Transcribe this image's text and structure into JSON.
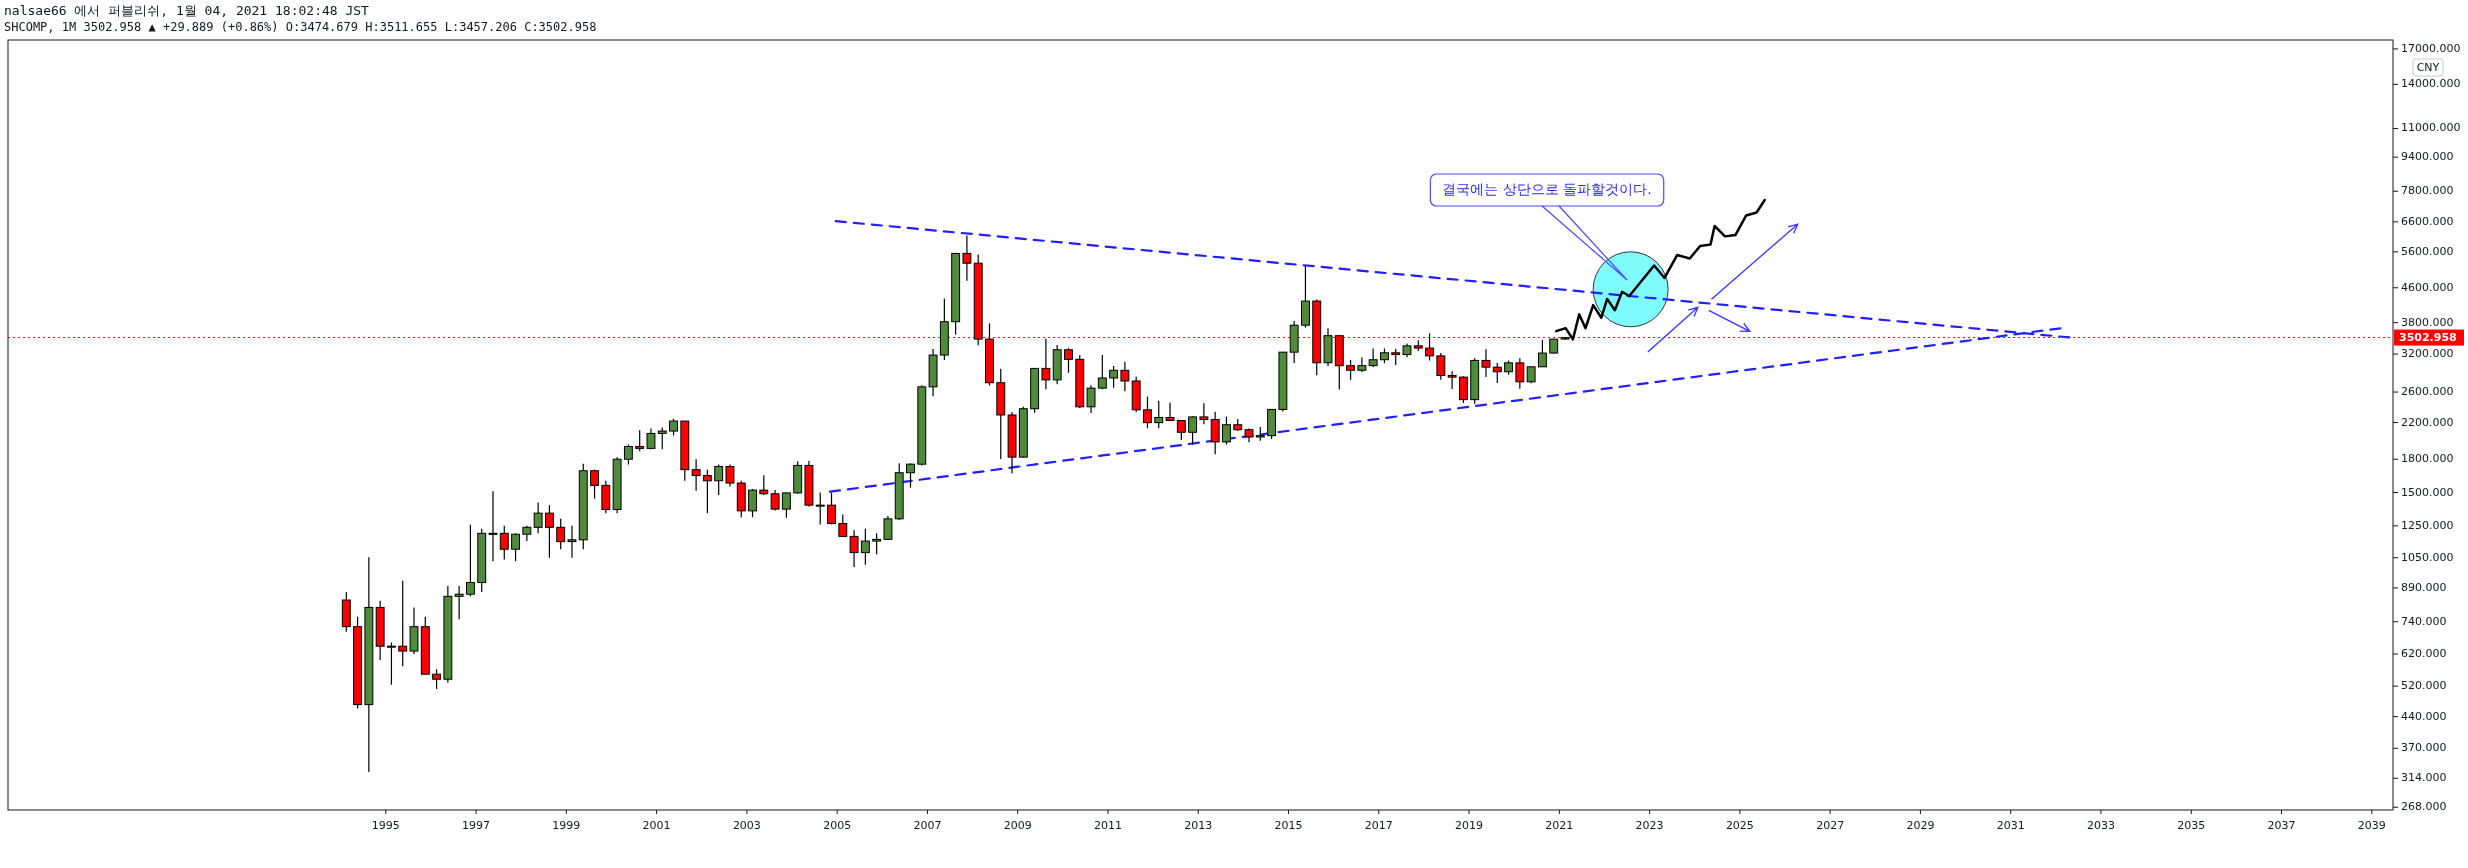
{
  "chart_data": {
    "type": "candlestick",
    "title": "nalsae66 에서 퍼블리쉬, 1월 04, 2021 18:02:48 JST",
    "subtitle": "SHCOMP, 1M 3502.958 ▲ +29.889 (+0.86%) O:3474.679 H:3511.655 L:3457.206 C:3502.958",
    "ylabel": "CNY",
    "log": "y",
    "xlim": [
      1986.63,
      2039.47
    ],
    "xticks": [
      1995,
      1997,
      1999,
      2001,
      2003,
      2005,
      2007,
      2009,
      2011,
      2013,
      2015,
      2017,
      2019,
      2021,
      2023,
      2025,
      2027,
      2029,
      2031,
      2033,
      2035,
      2037,
      2039
    ],
    "ylim": [
      264,
      17850
    ],
    "yticks": [
      {
        "value": 268,
        "label": "268.000"
      },
      {
        "value": 314,
        "label": "314.000"
      },
      {
        "value": 370,
        "label": "370.000"
      },
      {
        "value": 440,
        "label": "440.000"
      },
      {
        "value": 520,
        "label": "520.000"
      },
      {
        "value": 620,
        "label": "620.000"
      },
      {
        "value": 740,
        "label": "740.000"
      },
      {
        "value": 890,
        "label": "890.000"
      },
      {
        "value": 1050,
        "label": "1050.000"
      },
      {
        "value": 1250,
        "label": "1250.000"
      },
      {
        "value": 1500,
        "label": "1500.000"
      },
      {
        "value": 1800,
        "label": "1800.000"
      },
      {
        "value": 2200,
        "label": "2200.000"
      },
      {
        "value": 2600,
        "label": "2600.000"
      },
      {
        "value": 3200,
        "label": "3200.000"
      },
      {
        "value": 3800,
        "label": "3800.000"
      },
      {
        "value": 4600,
        "label": "4600.000"
      },
      {
        "value": 5600,
        "label": "5600.000"
      },
      {
        "value": 6600,
        "label": "6600.000"
      },
      {
        "value": 7800,
        "label": "7800.000"
      },
      {
        "value": 9400,
        "label": "9400.000"
      },
      {
        "value": 11000,
        "label": "11000.000"
      },
      {
        "value": 14000,
        "label": "14000.000"
      },
      {
        "value": 17000,
        "label": "17000.000"
      }
    ],
    "ref_lines": [
      {
        "axis": "y",
        "value": 3502.958,
        "label": "3502.958",
        "color": "#ff0000",
        "line_style": "dotted"
      }
    ],
    "annotations": [
      "결국에는 상단으로 돌파할것이다."
    ],
    "x": [
      1994.125,
      1994.375,
      1994.625,
      1994.875,
      1995.125,
      1995.375,
      1995.625,
      1995.875,
      1996.125,
      1996.375,
      1996.625,
      1996.875,
      1997.125,
      1997.375,
      1997.625,
      1997.875,
      1998.125,
      1998.375,
      1998.625,
      1998.875,
      1999.125,
      1999.375,
      1999.625,
      1999.875,
      2000.125,
      2000.375,
      2000.625,
      2000.875,
      2001.125,
      2001.375,
      2001.625,
      2001.875,
      2002.125,
      2002.375,
      2002.625,
      2002.875,
      2003.125,
      2003.375,
      2003.625,
      2003.875,
      2004.125,
      2004.375,
      2004.625,
      2004.875,
      2005.125,
      2005.375,
      2005.625,
      2005.875,
      2006.125,
      2006.375,
      2006.625,
      2006.875,
      2007.125,
      2007.375,
      2007.625,
      2007.875,
      2008.125,
      2008.375,
      2008.625,
      2008.875,
      2009.125,
      2009.375,
      2009.625,
      2009.875,
      2010.125,
      2010.375,
      2010.625,
      2010.875,
      2011.125,
      2011.375,
      2011.625,
      2011.875,
      2012.125,
      2012.375,
      2012.625,
      2012.875,
      2013.125,
      2013.375,
      2013.625,
      2013.875,
      2014.125,
      2014.375,
      2014.625,
      2014.875,
      2015.125,
      2015.375,
      2015.625,
      2015.875,
      2016.125,
      2016.375,
      2016.625,
      2016.875,
      2017.125,
      2017.375,
      2017.625,
      2017.875,
      2018.125,
      2018.375,
      2018.625,
      2018.875,
      2019.125,
      2019.375,
      2019.625,
      2019.875,
      2020.125,
      2020.375,
      2020.625,
      2020.875,
      2021.125
    ],
    "ohlc": [
      [
        833,
        870,
        700,
        720
      ],
      [
        720,
        760,
        460,
        470
      ],
      [
        470,
        1052,
        325,
        800
      ],
      [
        800,
        830,
        600,
        647
      ],
      [
        647,
        660,
        524,
        647
      ],
      [
        647,
        926,
        580,
        630
      ],
      [
        630,
        800,
        620,
        720
      ],
      [
        720,
        760,
        555,
        555
      ],
      [
        555,
        570,
        512,
        540
      ],
      [
        540,
        900,
        530,
        850
      ],
      [
        850,
        900,
        750,
        860
      ],
      [
        860,
        1258,
        850,
        917
      ],
      [
        917,
        1230,
        870,
        1200
      ],
      [
        1200,
        1510,
        1030,
        1200
      ],
      [
        1200,
        1250,
        1040,
        1100
      ],
      [
        1100,
        1200,
        1030,
        1194
      ],
      [
        1194,
        1250,
        1150,
        1240
      ],
      [
        1240,
        1420,
        1200,
        1340
      ],
      [
        1340,
        1400,
        1050,
        1240
      ],
      [
        1240,
        1300,
        1100,
        1147
      ],
      [
        1147,
        1250,
        1050,
        1158
      ],
      [
        1158,
        1756,
        1100,
        1690
      ],
      [
        1690,
        1700,
        1450,
        1560
      ],
      [
        1560,
        1600,
        1340,
        1367
      ],
      [
        1367,
        1820,
        1340,
        1800
      ],
      [
        1800,
        1950,
        1750,
        1930
      ],
      [
        1930,
        2110,
        1880,
        1910
      ],
      [
        1910,
        2130,
        1900,
        2073
      ],
      [
        2073,
        2140,
        1900,
        2100
      ],
      [
        2100,
        2245,
        2050,
        2218
      ],
      [
        2218,
        2220,
        1600,
        1700
      ],
      [
        1700,
        1800,
        1514,
        1646
      ],
      [
        1646,
        1700,
        1339,
        1600
      ],
      [
        1600,
        1750,
        1480,
        1730
      ],
      [
        1730,
        1750,
        1550,
        1580
      ],
      [
        1580,
        1600,
        1311,
        1357
      ],
      [
        1357,
        1530,
        1311,
        1520
      ],
      [
        1520,
        1650,
        1480,
        1490
      ],
      [
        1490,
        1520,
        1360,
        1370
      ],
      [
        1370,
        1500,
        1307,
        1497
      ],
      [
        1497,
        1780,
        1490,
        1740
      ],
      [
        1740,
        1783,
        1390,
        1400
      ],
      [
        1400,
        1500,
        1260,
        1400
      ],
      [
        1400,
        1500,
        1260,
        1266
      ],
      [
        1266,
        1330,
        1180,
        1180
      ],
      [
        1180,
        1220,
        998,
        1080
      ],
      [
        1080,
        1230,
        1010,
        1150
      ],
      [
        1150,
        1200,
        1070,
        1161
      ],
      [
        1161,
        1320,
        1160,
        1299
      ],
      [
        1299,
        1760,
        1290,
        1672
      ],
      [
        1672,
        1760,
        1540,
        1752
      ],
      [
        1752,
        2700,
        1740,
        2675
      ],
      [
        2675,
        3290,
        2540,
        3183
      ],
      [
        3183,
        4335,
        3100,
        3820
      ],
      [
        3820,
        5560,
        3560,
        5552
      ],
      [
        5552,
        6124,
        4778,
        5262
      ],
      [
        5262,
        5522,
        3357,
        3473
      ],
      [
        3473,
        3786,
        2693,
        2736
      ],
      [
        2736,
        2952,
        1802,
        2293
      ],
      [
        2293,
        2330,
        1664,
        1821
      ],
      [
        1821,
        2400,
        1814,
        2373
      ],
      [
        2373,
        2960,
        2320,
        2959
      ],
      [
        2959,
        3478,
        2639,
        2779
      ],
      [
        2779,
        3361,
        2712,
        3277
      ],
      [
        3277,
        3306,
        2890,
        3109
      ],
      [
        3109,
        3181,
        2382,
        2398
      ],
      [
        2398,
        2700,
        2319,
        2656
      ],
      [
        2656,
        3186,
        2640,
        2808
      ],
      [
        2808,
        3000,
        2661,
        2928
      ],
      [
        2928,
        3067,
        2610,
        2762
      ],
      [
        2762,
        2826,
        2331,
        2359
      ],
      [
        2359,
        2536,
        2132,
        2199
      ],
      [
        2199,
        2478,
        2132,
        2262
      ],
      [
        2262,
        2453,
        2220,
        2225
      ],
      [
        2225,
        2232,
        1999,
        2086
      ],
      [
        2086,
        2276,
        1949,
        2269
      ],
      [
        2269,
        2444,
        2180,
        2237
      ],
      [
        2237,
        2334,
        1849,
        1979
      ],
      [
        1979,
        2270,
        1950,
        2174
      ],
      [
        2174,
        2243,
        2100,
        2116
      ],
      [
        2116,
        2130,
        1974,
        2033
      ],
      [
        2033,
        2146,
        1991,
        2048
      ],
      [
        2048,
        2365,
        2010,
        2364
      ],
      [
        2364,
        3239,
        2337,
        3234
      ],
      [
        3234,
        3836,
        3049,
        3748
      ],
      [
        3748,
        5178,
        3700,
        4277
      ],
      [
        4277,
        4317,
        2850,
        3052
      ],
      [
        3052,
        3684,
        3000,
        3539
      ],
      [
        3539,
        3539,
        2638,
        3003
      ],
      [
        3003,
        3100,
        2780,
        2929
      ],
      [
        2929,
        3140,
        2900,
        3004
      ],
      [
        3004,
        3301,
        2980,
        3103
      ],
      [
        3103,
        3300,
        3044,
        3223
      ],
      [
        3223,
        3295,
        3016,
        3192
      ],
      [
        3192,
        3391,
        3146,
        3348
      ],
      [
        3348,
        3450,
        3254,
        3307
      ],
      [
        3307,
        3587,
        3091,
        3169
      ],
      [
        3169,
        3220,
        2782,
        2847
      ],
      [
        2847,
        2915,
        2644,
        2821
      ],
      [
        2821,
        2835,
        2449,
        2494
      ],
      [
        2494,
        3130,
        2440,
        3091
      ],
      [
        3091,
        3288,
        2822,
        2979
      ],
      [
        2979,
        3048,
        2733,
        2905
      ],
      [
        2905,
        3089,
        2857,
        3050
      ],
      [
        3050,
        3127,
        2646,
        2750
      ],
      [
        2750,
        2990,
        2728,
        2985
      ],
      [
        2985,
        3458,
        2984,
        3218
      ],
      [
        3218,
        3474,
        3209,
        3473
      ],
      [
        3474.679,
        3511.655,
        3457.206,
        3502.958
      ]
    ],
    "series": [
      {
        "type": "line",
        "color": "#1f1fff",
        "line_style": "dashed",
        "x": [
          2004.97,
          2032.3
        ],
        "values": [
          6624,
          3505
        ]
      },
      {
        "type": "line",
        "color": "#1f1fff",
        "line_style": "dashed",
        "x": [
          2004.84,
          2032.1
        ],
        "values": [
          1507,
          3685
        ]
      },
      {
        "type": "line",
        "color": "#000000",
        "line_style": "solid",
        "x": [
          2020.93,
          2021.14,
          2021.3,
          2021.44,
          2021.58,
          2021.75,
          2021.93,
          2022.06,
          2022.23,
          2022.39,
          2022.55,
          2023.1,
          2023.33,
          2023.61,
          2023.89,
          2024.12,
          2024.35,
          2024.44,
          2024.67,
          2024.9,
          2025.14,
          2025.37,
          2025.55
        ],
        "values": [
          3629,
          3688,
          3468,
          3977,
          3688,
          4183,
          3905,
          4328,
          4068,
          4500,
          4398,
          5196,
          4854,
          5502,
          5400,
          5783,
          5826,
          6451,
          6094,
          6137,
          6834,
          6946,
          7437
        ]
      }
    ]
  }
}
